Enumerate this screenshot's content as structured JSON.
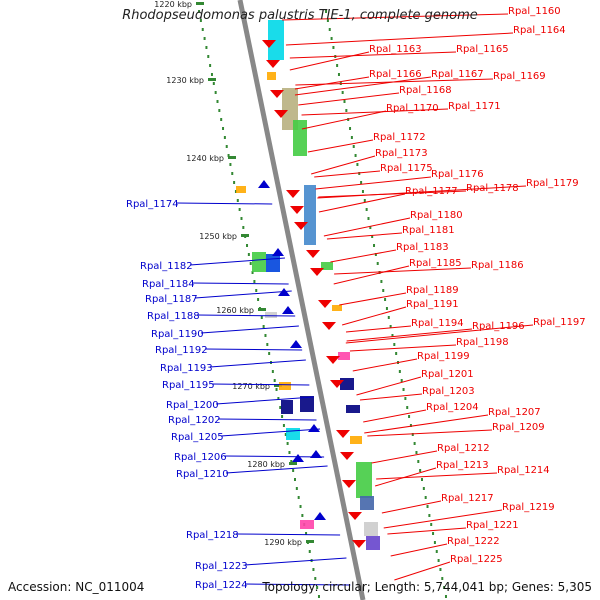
{
  "title": "Rhodopseudomonas palustris TIE-1, complete genome",
  "footer": {
    "accession": "Accession: NC_011004",
    "topology": "Topology: circular; Length: 5,744,041 bp; Genes: 5,305"
  },
  "colors": {
    "forward": "#ee0000",
    "reverse": "#0000cc",
    "backbone": "#888888",
    "tick": "#338833"
  },
  "scale": [
    "1220 kbp",
    "1230 kbp",
    "1240 kbp",
    "1250 kbp",
    "1260 kbp",
    "1270 kbp",
    "1280 kbp",
    "1290 kbp"
  ],
  "forward_labels": [
    "Rpal_1160",
    "Rpal_1164",
    "Rpal_1163",
    "Rpal_1165",
    "Rpal_1166",
    "Rpal_1167",
    "Rpal_1169",
    "Rpal_1168",
    "Rpal_1170",
    "Rpal_1171",
    "Rpal_1172",
    "Rpal_1173",
    "Rpal_1175",
    "Rpal_1176",
    "Rpal_1177",
    "Rpal_1178",
    "Rpal_1179",
    "Rpal_1180",
    "Rpal_1181",
    "Rpal_1183",
    "Rpal_1185",
    "Rpal_1186",
    "Rpal_1189",
    "Rpal_1191",
    "Rpal_1194",
    "Rpal_1196",
    "Rpal_1197",
    "Rpal_1198",
    "Rpal_1199",
    "Rpal_1201",
    "Rpal_1203",
    "Rpal_1204",
    "Rpal_1207",
    "Rpal_1209",
    "Rpal_1212",
    "Rpal_1213",
    "Rpal_1214",
    "Rpal_1217",
    "Rpal_1219",
    "Rpal_1221",
    "Rpal_1222",
    "Rpal_1225"
  ],
  "reverse_labels": [
    "Rpal_1174",
    "Rpal_1182",
    "Rpal_1184",
    "Rpal_1187",
    "Rpal_1188",
    "Rpal_1190",
    "Rpal_1192",
    "Rpal_1193",
    "Rpal_1195",
    "Rpal_1200",
    "Rpal_1202",
    "Rpal_1205",
    "Rpal_1206",
    "Rpal_1210",
    "Rpal_1218",
    "Rpal_1223",
    "Rpal_1224"
  ]
}
